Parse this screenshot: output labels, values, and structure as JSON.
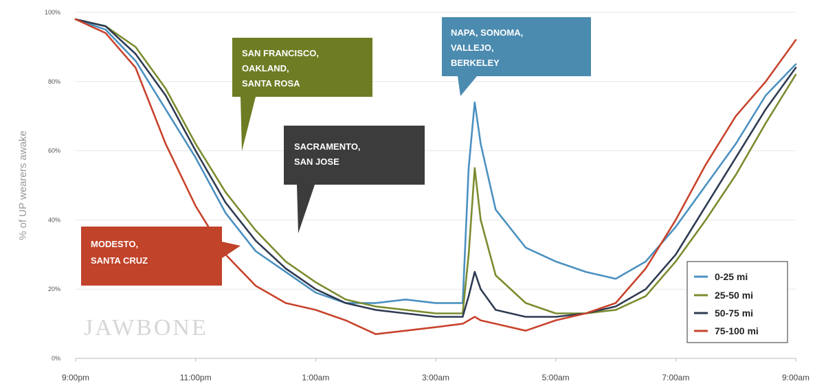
{
  "chart_data": {
    "type": "line",
    "ylabel": "% of UP wearers awake",
    "x_ticks": [
      "9:00pm",
      "11:00pm",
      "1:00am",
      "3:00am",
      "5:00am",
      "7:00am",
      "9:00am"
    ],
    "y_ticks": [
      "0%",
      "20%",
      "40%",
      "60%",
      "80%",
      "100%"
    ],
    "ylim": [
      0,
      100
    ],
    "xlim_hours": [
      0,
      12
    ],
    "grid": "horizontal",
    "legend_position": "bottom-right",
    "watermark": "JAWBONE",
    "series": [
      {
        "name": "0-25 mi",
        "color": "#4a90c0",
        "x": [
          0,
          0.5,
          1.0,
          1.5,
          2.0,
          2.5,
          3.0,
          3.5,
          4.0,
          4.5,
          5.0,
          5.5,
          6.0,
          6.45,
          6.55,
          6.65,
          6.75,
          7.0,
          7.5,
          8.0,
          8.5,
          9.0,
          9.5,
          10.0,
          10.5,
          11.0,
          11.5,
          12.0
        ],
        "y": [
          98,
          95,
          86,
          72,
          58,
          42,
          31,
          25,
          19,
          16,
          16,
          17,
          16,
          16,
          55,
          74,
          62,
          43,
          32,
          28,
          25,
          23,
          28,
          38,
          50,
          62,
          76,
          85
        ]
      },
      {
        "name": "25-50 mi",
        "color": "#7a8c2e",
        "x": [
          0,
          0.5,
          1.0,
          1.5,
          2.0,
          2.5,
          3.0,
          3.5,
          4.0,
          4.5,
          5.0,
          5.5,
          6.0,
          6.45,
          6.55,
          6.65,
          6.75,
          7.0,
          7.5,
          8.0,
          8.5,
          9.0,
          9.5,
          10.0,
          10.5,
          11.0,
          11.5,
          12.0
        ],
        "y": [
          98,
          96,
          90,
          78,
          62,
          48,
          37,
          28,
          22,
          17,
          15,
          14,
          13,
          13,
          30,
          55,
          40,
          24,
          16,
          13,
          13,
          14,
          18,
          28,
          40,
          53,
          68,
          82
        ]
      },
      {
        "name": "50-75 mi",
        "color": "#2f3b52",
        "x": [
          0,
          0.5,
          1.0,
          1.5,
          2.0,
          2.5,
          3.0,
          3.5,
          4.0,
          4.5,
          5.0,
          5.5,
          6.0,
          6.45,
          6.55,
          6.65,
          6.75,
          7.0,
          7.5,
          8.0,
          8.5,
          9.0,
          9.5,
          10.0,
          10.5,
          11.0,
          11.5,
          12.0
        ],
        "y": [
          98,
          96,
          88,
          76,
          60,
          45,
          34,
          26,
          20,
          16,
          14,
          13,
          12,
          12,
          18,
          25,
          20,
          14,
          12,
          12,
          13,
          15,
          20,
          30,
          44,
          58,
          72,
          84
        ]
      },
      {
        "name": "75-100 mi",
        "color": "#c8432c",
        "x": [
          0,
          0.5,
          1.0,
          1.5,
          2.0,
          2.5,
          3.0,
          3.5,
          4.0,
          4.5,
          5.0,
          5.5,
          6.0,
          6.45,
          6.55,
          6.65,
          6.75,
          7.0,
          7.5,
          8.0,
          8.5,
          9.0,
          9.5,
          10.0,
          10.5,
          11.0,
          11.5,
          12.0
        ],
        "y": [
          98,
          94,
          84,
          62,
          44,
          30,
          21,
          16,
          14,
          11,
          7,
          8,
          9,
          10,
          11,
          12,
          11,
          10,
          8,
          11,
          13,
          16,
          26,
          40,
          56,
          70,
          80,
          92
        ]
      }
    ]
  },
  "callouts": [
    {
      "lines": [
        "MODESTO,",
        "SANTA CRUZ"
      ],
      "color": "#c0432a"
    },
    {
      "lines": [
        "SAN FRANCISCO,",
        "OAKLAND,",
        "SANTA ROSA"
      ],
      "color": "#6e7d24"
    },
    {
      "lines": [
        "SACRAMENTO,",
        "SAN JOSE"
      ],
      "color": "#3c3c3c"
    },
    {
      "lines": [
        "NAPA, SONOMA,",
        "VALLEJO,",
        "BERKELEY"
      ],
      "color": "#4b8bb0"
    }
  ]
}
